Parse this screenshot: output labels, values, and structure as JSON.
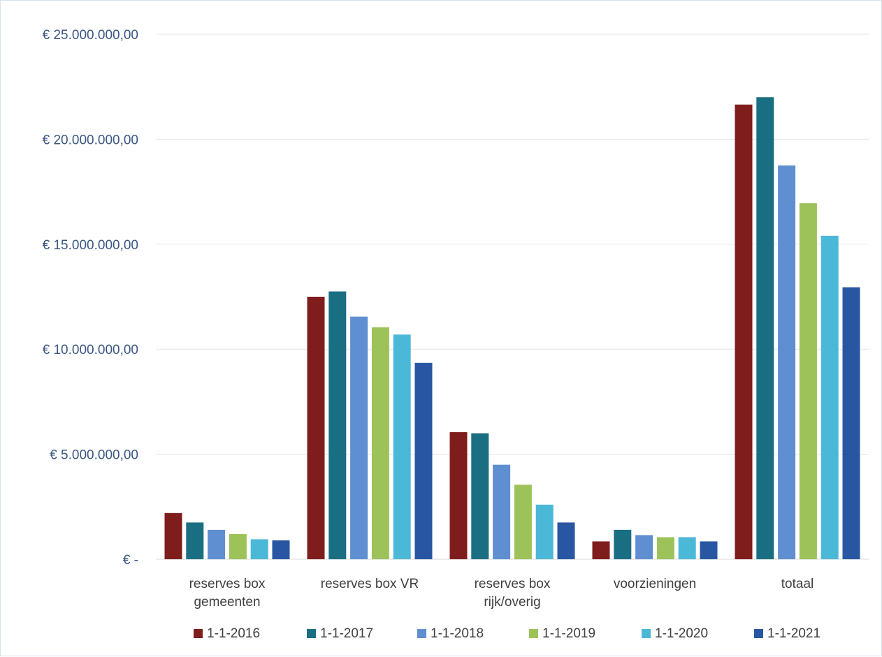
{
  "chart_data": {
    "type": "bar",
    "title": "",
    "xlabel": "",
    "ylabel": "",
    "ylim": [
      0,
      25000000
    ],
    "yticks": [
      0,
      5000000,
      10000000,
      15000000,
      20000000,
      25000000
    ],
    "ytick_labels": [
      "€ -",
      "€ 5.000.000,00",
      "€ 10.000.000,00",
      "€ 15.000.000,00",
      "€ 20.000.000,00",
      "€ 25.000.000,00"
    ],
    "grid": true,
    "legend_position": "bottom",
    "categories": [
      [
        "reserves box",
        "gemeenten"
      ],
      [
        "reserves box VR"
      ],
      [
        "reserves box",
        "rijk/overig"
      ],
      [
        "voorzieningen"
      ],
      [
        "totaal"
      ]
    ],
    "series": [
      {
        "name": "1-1-2016",
        "color": "#7f1d1d",
        "values": [
          2200000,
          12500000,
          6050000,
          850000,
          21650000
        ]
      },
      {
        "name": "1-1-2017",
        "color": "#1a6e82",
        "values": [
          1750000,
          12750000,
          6000000,
          1400000,
          22000000
        ]
      },
      {
        "name": "1-1-2018",
        "color": "#5f8fd0",
        "values": [
          1400000,
          11550000,
          4500000,
          1150000,
          18750000
        ]
      },
      {
        "name": "1-1-2019",
        "color": "#9dc25a",
        "values": [
          1200000,
          11050000,
          3550000,
          1050000,
          16950000
        ]
      },
      {
        "name": "1-1-2020",
        "color": "#4cb8d8",
        "values": [
          950000,
          10700000,
          2600000,
          1050000,
          15400000
        ]
      },
      {
        "name": "1-1-2021",
        "color": "#2856a2",
        "values": [
          900000,
          9350000,
          1750000,
          850000,
          12950000
        ]
      }
    ]
  }
}
